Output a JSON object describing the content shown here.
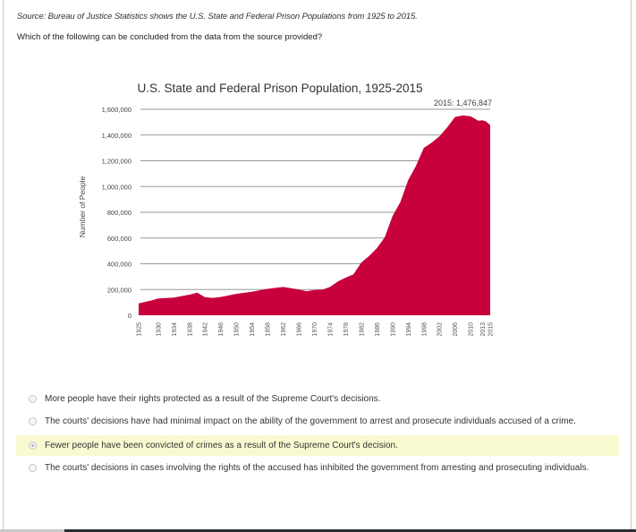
{
  "source_text": "Source: Bureau of Justice Statistics shows the U.S. State and Federal Prison Populations from 1925 to 2015.",
  "question": "Which of the following can be concluded from the data from the source provided?",
  "chart_data": {
    "type": "area",
    "title": "U.S. State and Federal Prison Population, 1925-2015",
    "xlabel": "",
    "ylabel": "Number of People",
    "ylim": [
      0,
      1600000
    ],
    "xlim": [
      1925,
      2015
    ],
    "grid": true,
    "color": "#c8003c",
    "y_ticks": [
      0,
      200000,
      400000,
      600000,
      800000,
      1000000,
      1200000,
      1400000,
      1600000
    ],
    "y_tick_labels": [
      "0",
      "200,000",
      "400,000",
      "600,000",
      "800,000",
      "1,000,000",
      "1,200,000",
      "1,400,000",
      "1,600,000"
    ],
    "x_tick_labels": [
      "1925",
      "1930",
      "1934",
      "1938",
      "1942",
      "1946",
      "1950",
      "1954",
      "1958",
      "1962",
      "1966",
      "1970",
      "1974",
      "1978",
      "1982",
      "1986",
      "1990",
      "1994",
      "1998",
      "2002",
      "2006",
      "2010",
      "2013",
      "2015"
    ],
    "annotation": "2015: 1,476,847",
    "series": [
      {
        "name": "Prison Population",
        "x": [
          1925,
          1928,
          1930,
          1934,
          1938,
          1940,
          1942,
          1944,
          1946,
          1950,
          1954,
          1958,
          1962,
          1966,
          1968,
          1970,
          1972,
          1974,
          1976,
          1978,
          1980,
          1982,
          1984,
          1986,
          1988,
          1990,
          1992,
          1994,
          1996,
          1998,
          2000,
          2002,
          2004,
          2006,
          2008,
          2010,
          2012,
          2013,
          2014,
          2015
        ],
        "values": [
          92000,
          113000,
          130000,
          138000,
          160000,
          175000,
          140000,
          135000,
          142000,
          166000,
          182000,
          205000,
          220000,
          200000,
          187000,
          196000,
          198000,
          220000,
          262000,
          292000,
          318000,
          410000,
          460000,
          522000,
          605000,
          770000,
          880000,
          1050000,
          1160000,
          1300000,
          1340000,
          1390000,
          1460000,
          1540000,
          1552000,
          1545000,
          1510000,
          1515000,
          1505000,
          1476847
        ]
      }
    ]
  },
  "options": [
    {
      "label": "More people have their rights protected as a result of the Supreme Court's decisions.",
      "selected": false
    },
    {
      "label": "The courts' decisions have had minimal impact on the ability of the government to arrest and prosecute individuals accused of a crime.",
      "selected": false
    },
    {
      "label": "Fewer people have been convicted of crimes as a result of the Supreme Court's decision.",
      "selected": true
    },
    {
      "label": "The courts' decisions in cases involving the rights of the accused has inhibited the government from arresting and prosecuting individuals.",
      "selected": false
    }
  ]
}
